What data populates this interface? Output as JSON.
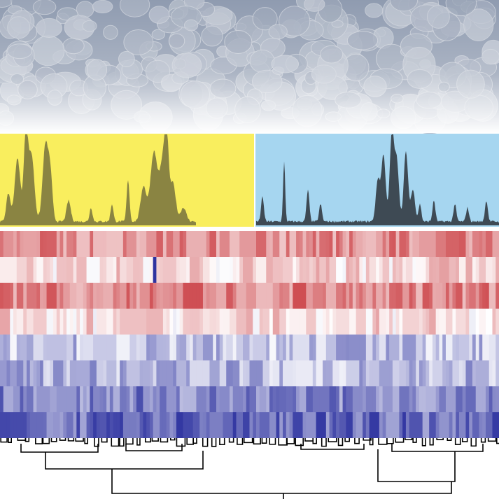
{
  "panels": {
    "image_tint": "#8f9bb0",
    "spectrum_left_background": "#f9ee5e",
    "spectrum_left_fill": "#8a8442",
    "spectrum_right_background": "#a6d6f0",
    "spectrum_right_fill": "#3e4a54",
    "heatmap_high": "#c8353a",
    "heatmap_low": "#2e33a0",
    "dendrogram_stroke": "#000000"
  }
}
